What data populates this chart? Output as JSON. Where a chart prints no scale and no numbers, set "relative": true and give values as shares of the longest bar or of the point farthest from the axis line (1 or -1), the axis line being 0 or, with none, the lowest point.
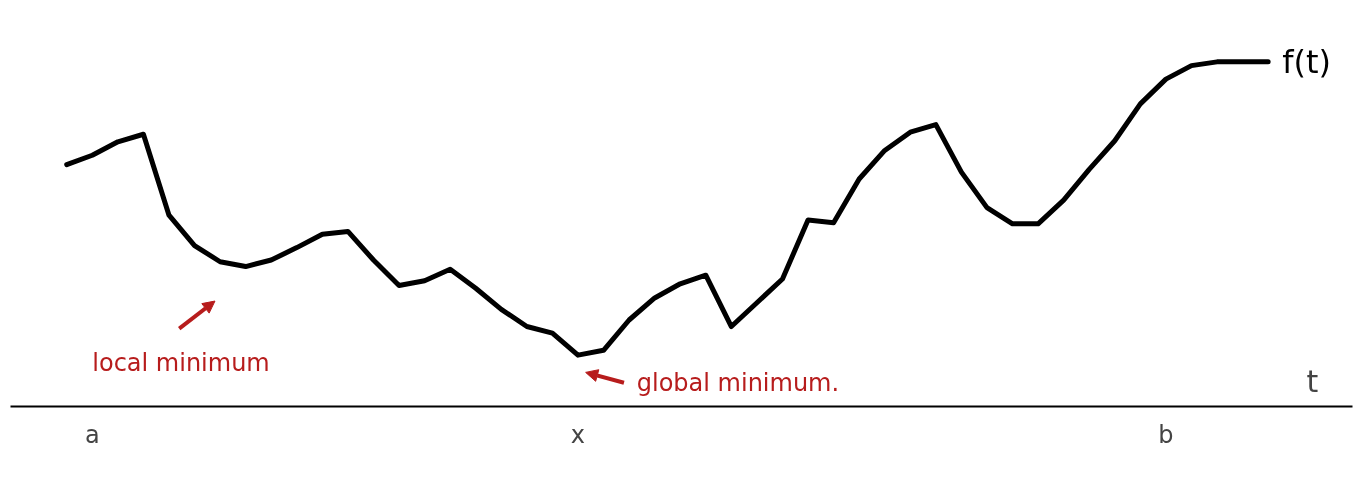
{
  "chart_data": {
    "type": "line",
    "relative": true,
    "xlabel": "t",
    "categories": [
      null,
      "a",
      null,
      null,
      null,
      null,
      null,
      null,
      null,
      null,
      null,
      null,
      null,
      null,
      null,
      null,
      null,
      null,
      null,
      null,
      "x",
      null,
      null,
      null,
      null,
      null,
      null,
      null,
      null,
      null,
      null,
      null,
      null,
      null,
      null,
      null,
      null,
      null,
      null,
      null,
      null,
      null,
      null,
      "b",
      null,
      null,
      null,
      null
    ],
    "series": [
      {
        "name": "f(t)",
        "color": "#000000",
        "values": [
          0.702,
          0.729,
          0.768,
          0.79,
          0.555,
          0.467,
          0.42,
          0.406,
          0.425,
          0.461,
          0.5,
          0.508,
          0.425,
          0.351,
          0.365,
          0.398,
          0.343,
          0.282,
          0.232,
          0.213,
          0.149,
          0.163,
          0.251,
          0.315,
          0.356,
          0.381,
          0.232,
          0.301,
          0.37,
          0.541,
          0.533,
          0.66,
          0.743,
          0.796,
          0.818,
          0.68,
          0.577,
          0.53,
          0.53,
          0.599,
          0.688,
          0.771,
          0.878,
          0.95,
          0.989,
          1,
          1,
          1
        ]
      }
    ],
    "annotations": [
      "local minimum",
      "global minimum."
    ],
    "grid": false,
    "marker": "none",
    "line_style": "solid"
  }
}
